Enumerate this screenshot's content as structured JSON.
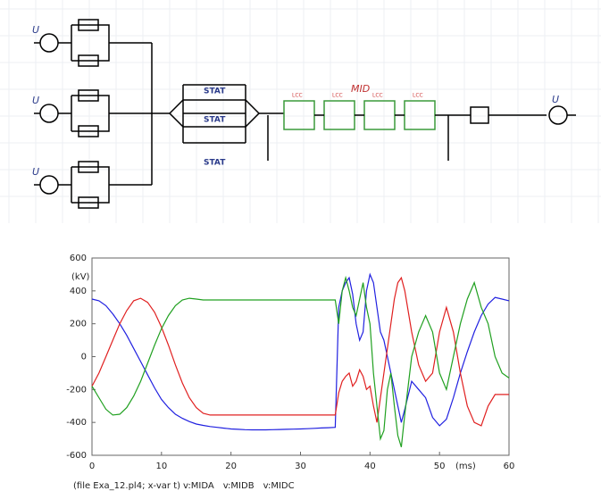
{
  "diagram": {
    "sources": [
      "U",
      "U",
      "U",
      "U"
    ],
    "stat": [
      "STAT",
      "STAT",
      "STAT"
    ],
    "lcc": [
      "LCC",
      "LCC",
      "LCC",
      "LCC"
    ],
    "probe": "MID"
  },
  "chart_data": {
    "type": "line",
    "ylabel": "(kV)",
    "xlabel": "(ms)",
    "caption": "(file Exa_12.pl4; x-var t)",
    "xlim": [
      0,
      60
    ],
    "xticks": [
      0,
      10,
      20,
      30,
      40,
      50,
      60
    ],
    "ylim": [
      -600,
      600
    ],
    "yticks": [
      -600,
      -400,
      -200,
      0,
      200,
      400,
      600
    ],
    "x": [
      0,
      1,
      2,
      3,
      4,
      5,
      6,
      7,
      8,
      9,
      10,
      11,
      12,
      13,
      14,
      15,
      16,
      17,
      18,
      19,
      20,
      21,
      22,
      23,
      24,
      25,
      26,
      27,
      28,
      29,
      30,
      31,
      32,
      33,
      34,
      35,
      35.5,
      36,
      36.5,
      37,
      37.5,
      38,
      38.5,
      39,
      39.5,
      40,
      40.5,
      41,
      41.5,
      42,
      42.5,
      43,
      43.5,
      44,
      44.5,
      45,
      46,
      47,
      48,
      49,
      50,
      51,
      52,
      53,
      54,
      55,
      56,
      57,
      58,
      59,
      60
    ],
    "series": [
      {
        "name": "v:MIDA",
        "color": "#2020e0",
        "values": [
          350,
          340,
          310,
          260,
          200,
          130,
          50,
          -30,
          -110,
          -190,
          -260,
          -310,
          -350,
          -375,
          -395,
          -410,
          -418,
          -425,
          -430,
          -435,
          -440,
          -442,
          -444,
          -445,
          -445,
          -445,
          -444,
          -443,
          -442,
          -441,
          -440,
          -438,
          -436,
          -434,
          -432,
          -430,
          300,
          400,
          450,
          480,
          380,
          200,
          100,
          150,
          400,
          500,
          450,
          300,
          150,
          100,
          0,
          -100,
          -200,
          -300,
          -400,
          -320,
          -150,
          -200,
          -250,
          -370,
          -420,
          -380,
          -250,
          -100,
          30,
          150,
          250,
          320,
          360,
          350,
          340
        ]
      },
      {
        "name": "v:MIDB",
        "color": "#e02020",
        "values": [
          -180,
          -100,
          0,
          100,
          200,
          280,
          340,
          355,
          330,
          270,
          180,
          70,
          -50,
          -160,
          -250,
          -310,
          -345,
          -355,
          -355,
          -355,
          -355,
          -355,
          -355,
          -355,
          -355,
          -355,
          -355,
          -355,
          -355,
          -355,
          -355,
          -355,
          -355,
          -355,
          -355,
          -355,
          -220,
          -150,
          -120,
          -100,
          -180,
          -150,
          -80,
          -120,
          -200,
          -180,
          -300,
          -400,
          -250,
          -100,
          50,
          200,
          350,
          450,
          480,
          400,
          150,
          -50,
          -150,
          -100,
          150,
          300,
          150,
          -100,
          -300,
          -400,
          -420,
          -300,
          -230,
          -230,
          -230
        ]
      },
      {
        "name": "v:MIDC",
        "color": "#20a020",
        "values": [
          -180,
          -250,
          -320,
          -355,
          -350,
          -310,
          -240,
          -150,
          -40,
          70,
          170,
          250,
          310,
          345,
          355,
          350,
          345,
          345,
          345,
          345,
          345,
          345,
          345,
          345,
          345,
          345,
          345,
          345,
          345,
          345,
          345,
          345,
          345,
          345,
          345,
          345,
          200,
          400,
          480,
          400,
          300,
          250,
          350,
          450,
          300,
          200,
          -100,
          -300,
          -500,
          -450,
          -200,
          -100,
          -300,
          -480,
          -550,
          -350,
          0,
          150,
          250,
          150,
          -100,
          -200,
          0,
          200,
          350,
          450,
          300,
          200,
          0,
          -100,
          -130
        ]
      }
    ]
  }
}
